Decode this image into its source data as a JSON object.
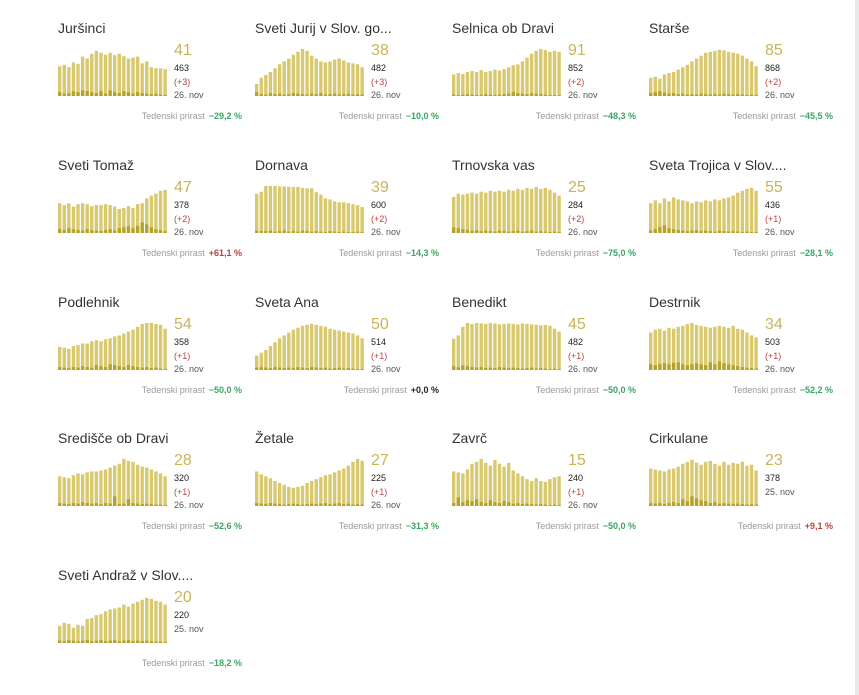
{
  "growth_label": "Tedenski prirast",
  "colors": {
    "bar": "#d8c86e",
    "bar_dark": "#b5a22a",
    "up": "#b5453a",
    "down": "#3aa65f"
  },
  "panels": [
    {
      "name": "Juršinci",
      "big": "41",
      "total": "463",
      "delta": "(+3)",
      "date": "26. nov",
      "growth": "−29,2 %",
      "trend": "down",
      "bars": [
        0.62,
        0.65,
        0.6,
        0.7,
        0.67,
        0.82,
        0.78,
        0.88,
        0.94,
        0.9,
        0.86,
        0.9,
        0.85,
        0.88,
        0.83,
        0.78,
        0.8,
        0.82,
        0.68,
        0.72,
        0.6,
        0.58,
        0.58,
        0.56
      ],
      "dark": [
        0.08,
        0.05,
        0.06,
        0.1,
        0.08,
        0.12,
        0.1,
        0.08,
        0.06,
        0.1,
        0.05,
        0.12,
        0.08,
        0.06,
        0.1,
        0.08,
        0.05,
        0.08,
        0.06,
        0.05,
        0.04,
        0.05,
        0.03,
        0.02
      ]
    },
    {
      "name": "Sveti Jurij v Slov. go...",
      "big": "38",
      "total": "482",
      "delta": "(+3)",
      "date": "26. nov",
      "growth": "−10,0 %",
      "trend": "down",
      "bars": [
        0.25,
        0.38,
        0.44,
        0.5,
        0.58,
        0.66,
        0.72,
        0.78,
        0.86,
        0.92,
        0.98,
        0.94,
        0.84,
        0.78,
        0.72,
        0.7,
        0.72,
        0.76,
        0.78,
        0.74,
        0.7,
        0.68,
        0.66,
        0.6
      ],
      "dark": [
        0.08,
        0.04,
        0.03,
        0.06,
        0.04,
        0.05,
        0.03,
        0.04,
        0.06,
        0.05,
        0.04,
        0.03,
        0.05,
        0.04,
        0.06,
        0.03,
        0.04,
        0.05,
        0.03,
        0.04,
        0.05,
        0.03,
        0.04,
        0.03
      ]
    },
    {
      "name": "Selnica ob Dravi",
      "big": "91",
      "total": "852",
      "delta": "(+2)",
      "date": "26. nov",
      "growth": "−48,3 %",
      "trend": "down",
      "bars": [
        0.45,
        0.48,
        0.46,
        0.5,
        0.52,
        0.5,
        0.54,
        0.5,
        0.52,
        0.55,
        0.53,
        0.56,
        0.6,
        0.64,
        0.66,
        0.72,
        0.8,
        0.88,
        0.94,
        0.98,
        0.96,
        0.92,
        0.94,
        0.92
      ],
      "dark": [
        0.03,
        0.02,
        0.03,
        0.04,
        0.03,
        0.02,
        0.03,
        0.04,
        0.03,
        0.02,
        0.03,
        0.04,
        0.05,
        0.08,
        0.06,
        0.05,
        0.04,
        0.06,
        0.05,
        0.04,
        0.03,
        0.02,
        0.02,
        0.02
      ]
    },
    {
      "name": "Starše",
      "big": "85",
      "total": "868",
      "delta": "(+2)",
      "date": "26. nov",
      "growth": "−45,5 %",
      "trend": "down",
      "bars": [
        0.38,
        0.4,
        0.36,
        0.45,
        0.48,
        0.5,
        0.55,
        0.6,
        0.65,
        0.72,
        0.78,
        0.84,
        0.9,
        0.92,
        0.94,
        0.96,
        0.95,
        0.92,
        0.9,
        0.88,
        0.84,
        0.78,
        0.72,
        0.62
      ],
      "dark": [
        0.06,
        0.08,
        0.1,
        0.07,
        0.05,
        0.06,
        0.04,
        0.05,
        0.03,
        0.04,
        0.03,
        0.05,
        0.04,
        0.03,
        0.04,
        0.03,
        0.05,
        0.04,
        0.03,
        0.04,
        0.03,
        0.02,
        0.03,
        0.02
      ]
    },
    {
      "name": "Sveti Tomaž",
      "big": "47",
      "total": "378",
      "delta": "(+2)",
      "date": "26. nov",
      "growth": "+61,1 %",
      "trend": "up",
      "bars": [
        0.62,
        0.58,
        0.62,
        0.55,
        0.6,
        0.62,
        0.6,
        0.56,
        0.58,
        0.58,
        0.6,
        0.58,
        0.55,
        0.5,
        0.52,
        0.56,
        0.52,
        0.6,
        0.62,
        0.72,
        0.78,
        0.82,
        0.88,
        0.9
      ],
      "dark": [
        0.08,
        0.06,
        0.1,
        0.08,
        0.06,
        0.05,
        0.08,
        0.06,
        0.05,
        0.04,
        0.06,
        0.08,
        0.05,
        0.1,
        0.12,
        0.14,
        0.1,
        0.15,
        0.22,
        0.18,
        0.12,
        0.08,
        0.06,
        0.04
      ]
    },
    {
      "name": "Dornava",
      "big": "39",
      "total": "600",
      "delta": "(+2)",
      "date": "26. nov",
      "growth": "−14,3 %",
      "trend": "down",
      "bars": [
        0.82,
        0.86,
        0.98,
        0.98,
        0.98,
        0.97,
        0.97,
        0.96,
        0.96,
        0.96,
        0.94,
        0.93,
        0.93,
        0.85,
        0.8,
        0.72,
        0.7,
        0.66,
        0.64,
        0.64,
        0.62,
        0.6,
        0.58,
        0.54
      ],
      "dark": [
        0.05,
        0.04,
        0.04,
        0.05,
        0.03,
        0.04,
        0.05,
        0.03,
        0.04,
        0.03,
        0.05,
        0.04,
        0.03,
        0.04,
        0.03,
        0.02,
        0.04,
        0.03,
        0.02,
        0.03,
        0.02,
        0.02,
        0.03,
        0.02
      ]
    },
    {
      "name": "Trnovska vas",
      "big": "25",
      "total": "284",
      "delta": "(+2)",
      "date": "26. nov",
      "growth": "−75,0 %",
      "trend": "down",
      "bars": [
        0.75,
        0.82,
        0.8,
        0.82,
        0.84,
        0.82,
        0.86,
        0.84,
        0.88,
        0.86,
        0.88,
        0.86,
        0.9,
        0.88,
        0.92,
        0.9,
        0.94,
        0.92,
        0.96,
        0.92,
        0.94,
        0.9,
        0.84,
        0.78
      ],
      "dark": [
        0.12,
        0.1,
        0.08,
        0.06,
        0.05,
        0.06,
        0.04,
        0.05,
        0.04,
        0.03,
        0.05,
        0.04,
        0.03,
        0.04,
        0.05,
        0.03,
        0.04,
        0.05,
        0.03,
        0.04,
        0.03,
        0.02,
        0.03,
        0.02
      ]
    },
    {
      "name": "Sveta Trojica v Slov....",
      "big": "55",
      "total": "436",
      "delta": "(+1)",
      "date": "26. nov",
      "growth": "−28,1 %",
      "trend": "down",
      "bars": [
        0.62,
        0.68,
        0.62,
        0.72,
        0.66,
        0.74,
        0.7,
        0.68,
        0.66,
        0.62,
        0.66,
        0.64,
        0.68,
        0.66,
        0.7,
        0.68,
        0.72,
        0.74,
        0.78,
        0.84,
        0.88,
        0.92,
        0.94,
        0.88
      ],
      "dark": [
        0.05,
        0.08,
        0.12,
        0.16,
        0.1,
        0.08,
        0.06,
        0.05,
        0.04,
        0.05,
        0.06,
        0.04,
        0.05,
        0.04,
        0.03,
        0.05,
        0.04,
        0.03,
        0.04,
        0.03,
        0.02,
        0.03,
        0.02,
        0.02
      ]
    },
    {
      "name": "Podlehnik",
      "big": "54",
      "total": "358",
      "delta": "(+1)",
      "date": "26. nov",
      "growth": "−50,0 %",
      "trend": "down",
      "bars": [
        0.48,
        0.46,
        0.44,
        0.5,
        0.52,
        0.55,
        0.55,
        0.6,
        0.62,
        0.6,
        0.64,
        0.66,
        0.7,
        0.72,
        0.76,
        0.8,
        0.84,
        0.9,
        0.96,
        0.98,
        0.98,
        0.96,
        0.94,
        0.86
      ],
      "dark": [
        0.06,
        0.05,
        0.04,
        0.06,
        0.05,
        0.08,
        0.06,
        0.05,
        0.1,
        0.08,
        0.06,
        0.12,
        0.1,
        0.08,
        0.06,
        0.1,
        0.08,
        0.06,
        0.05,
        0.06,
        0.04,
        0.05,
        0.03,
        0.02
      ]
    },
    {
      "name": "Sveta Ana",
      "big": "50",
      "total": "514",
      "delta": "(+1)",
      "date": "26. nov",
      "growth": "+0,0 %",
      "trend": "flat",
      "bars": [
        0.3,
        0.36,
        0.42,
        0.5,
        0.58,
        0.66,
        0.72,
        0.78,
        0.84,
        0.88,
        0.92,
        0.94,
        0.96,
        0.94,
        0.92,
        0.9,
        0.86,
        0.84,
        0.82,
        0.8,
        0.78,
        0.76,
        0.72,
        0.66
      ],
      "dark": [
        0.05,
        0.06,
        0.05,
        0.04,
        0.06,
        0.05,
        0.04,
        0.05,
        0.04,
        0.06,
        0.05,
        0.04,
        0.06,
        0.05,
        0.04,
        0.05,
        0.03,
        0.04,
        0.05,
        0.03,
        0.04,
        0.03,
        0.02,
        0.02
      ]
    },
    {
      "name": "Benedikt",
      "big": "45",
      "total": "482",
      "delta": "(+1)",
      "date": "26. nov",
      "growth": "−50,0 %",
      "trend": "down",
      "bars": [
        0.65,
        0.72,
        0.9,
        0.98,
        0.96,
        0.98,
        0.97,
        0.96,
        0.98,
        0.97,
        0.95,
        0.96,
        0.97,
        0.96,
        0.95,
        0.97,
        0.96,
        0.95,
        0.94,
        0.93,
        0.94,
        0.92,
        0.86,
        0.8
      ],
      "dark": [
        0.08,
        0.06,
        0.1,
        0.08,
        0.06,
        0.05,
        0.06,
        0.04,
        0.05,
        0.04,
        0.06,
        0.05,
        0.04,
        0.05,
        0.04,
        0.03,
        0.04,
        0.05,
        0.03,
        0.04,
        0.03,
        0.02,
        0.03,
        0.02
      ]
    },
    {
      "name": "Destrnik",
      "big": "34",
      "total": "503",
      "delta": "(+1)",
      "date": "26. nov",
      "growth": "−52,2 %",
      "trend": "down",
      "bars": [
        0.78,
        0.84,
        0.86,
        0.82,
        0.88,
        0.86,
        0.9,
        0.92,
        0.96,
        0.98,
        0.94,
        0.92,
        0.9,
        0.88,
        0.9,
        0.92,
        0.9,
        0.88,
        0.92,
        0.86,
        0.84,
        0.78,
        0.72,
        0.68
      ],
      "dark": [
        0.12,
        0.1,
        0.12,
        0.14,
        0.12,
        0.15,
        0.16,
        0.12,
        0.1,
        0.12,
        0.14,
        0.12,
        0.1,
        0.16,
        0.12,
        0.18,
        0.14,
        0.12,
        0.1,
        0.08,
        0.06,
        0.05,
        0.04,
        0.03
      ]
    },
    {
      "name": "Središče ob Dravi",
      "big": "28",
      "total": "320",
      "delta": "(+1)",
      "date": "26. nov",
      "growth": "−52,6 %",
      "trend": "down",
      "bars": [
        0.62,
        0.6,
        0.58,
        0.64,
        0.68,
        0.66,
        0.7,
        0.72,
        0.72,
        0.74,
        0.76,
        0.8,
        0.84,
        0.88,
        0.98,
        0.94,
        0.92,
        0.86,
        0.82,
        0.8,
        0.76,
        0.72,
        0.68,
        0.62
      ],
      "dark": [
        0.06,
        0.05,
        0.04,
        0.06,
        0.05,
        0.08,
        0.06,
        0.05,
        0.06,
        0.04,
        0.06,
        0.05,
        0.2,
        0.04,
        0.05,
        0.14,
        0.06,
        0.05,
        0.04,
        0.05,
        0.04,
        0.03,
        0.03,
        0.02
      ]
    },
    {
      "name": "Žetale",
      "big": "27",
      "total": "225",
      "delta": "(+1)",
      "date": "26. nov",
      "growth": "−31,3 %",
      "trend": "down",
      "bars": [
        0.72,
        0.66,
        0.62,
        0.58,
        0.52,
        0.48,
        0.44,
        0.4,
        0.38,
        0.4,
        0.42,
        0.48,
        0.52,
        0.56,
        0.6,
        0.64,
        0.66,
        0.7,
        0.74,
        0.78,
        0.84,
        0.92,
        0.98,
        0.94
      ],
      "dark": [
        0.06,
        0.05,
        0.04,
        0.06,
        0.05,
        0.04,
        0.03,
        0.04,
        0.05,
        0.04,
        0.03,
        0.04,
        0.05,
        0.04,
        0.05,
        0.06,
        0.04,
        0.05,
        0.06,
        0.04,
        0.05,
        0.03,
        0.04,
        0.03
      ]
    },
    {
      "name": "Zavrč",
      "big": "15",
      "total": "240",
      "delta": "(+1)",
      "date": "26. nov",
      "growth": "−50,0 %",
      "trend": "down",
      "bars": [
        0.72,
        0.7,
        0.68,
        0.76,
        0.88,
        0.92,
        0.98,
        0.9,
        0.84,
        0.96,
        0.88,
        0.82,
        0.9,
        0.74,
        0.68,
        0.62,
        0.56,
        0.52,
        0.58,
        0.52,
        0.5,
        0.56,
        0.6,
        0.62
      ],
      "dark": [
        0.06,
        0.18,
        0.08,
        0.12,
        0.1,
        0.14,
        0.08,
        0.06,
        0.12,
        0.08,
        0.06,
        0.1,
        0.08,
        0.05,
        0.06,
        0.04,
        0.05,
        0.04,
        0.03,
        0.04,
        0.03,
        0.02,
        0.03,
        0.02
      ]
    },
    {
      "name": "Cirkulane",
      "big": "23",
      "total": "378",
      "date": "25. nov",
      "growth": "+9,1 %",
      "trend": "up",
      "bars": [
        0.78,
        0.76,
        0.74,
        0.72,
        0.76,
        0.78,
        0.82,
        0.88,
        0.92,
        0.96,
        0.9,
        0.86,
        0.92,
        0.94,
        0.88,
        0.84,
        0.92,
        0.86,
        0.9,
        0.88,
        0.92,
        0.84,
        0.86,
        0.74
      ],
      "dark": [
        0.06,
        0.05,
        0.06,
        0.04,
        0.06,
        0.08,
        0.06,
        0.14,
        0.1,
        0.2,
        0.16,
        0.12,
        0.1,
        0.06,
        0.08,
        0.05,
        0.06,
        0.05,
        0.04,
        0.05,
        0.04,
        0.03,
        0.04,
        0.03
      ]
    },
    {
      "name": "Sveti Andraž v Slov....",
      "big": "20",
      "total": "220",
      "date": "25. nov",
      "growth": "−18,2 %",
      "trend": "down",
      "bars": [
        0.36,
        0.42,
        0.4,
        0.32,
        0.38,
        0.36,
        0.5,
        0.52,
        0.58,
        0.6,
        0.66,
        0.7,
        0.72,
        0.74,
        0.8,
        0.76,
        0.82,
        0.86,
        0.9,
        0.94,
        0.92,
        0.88,
        0.86,
        0.8
      ],
      "dark": [
        0.05,
        0.04,
        0.06,
        0.05,
        0.04,
        0.05,
        0.06,
        0.04,
        0.05,
        0.06,
        0.04,
        0.05,
        0.06,
        0.04,
        0.05,
        0.06,
        0.04,
        0.05,
        0.04,
        0.05,
        0.04,
        0.03,
        0.03,
        0.02
      ]
    }
  ]
}
